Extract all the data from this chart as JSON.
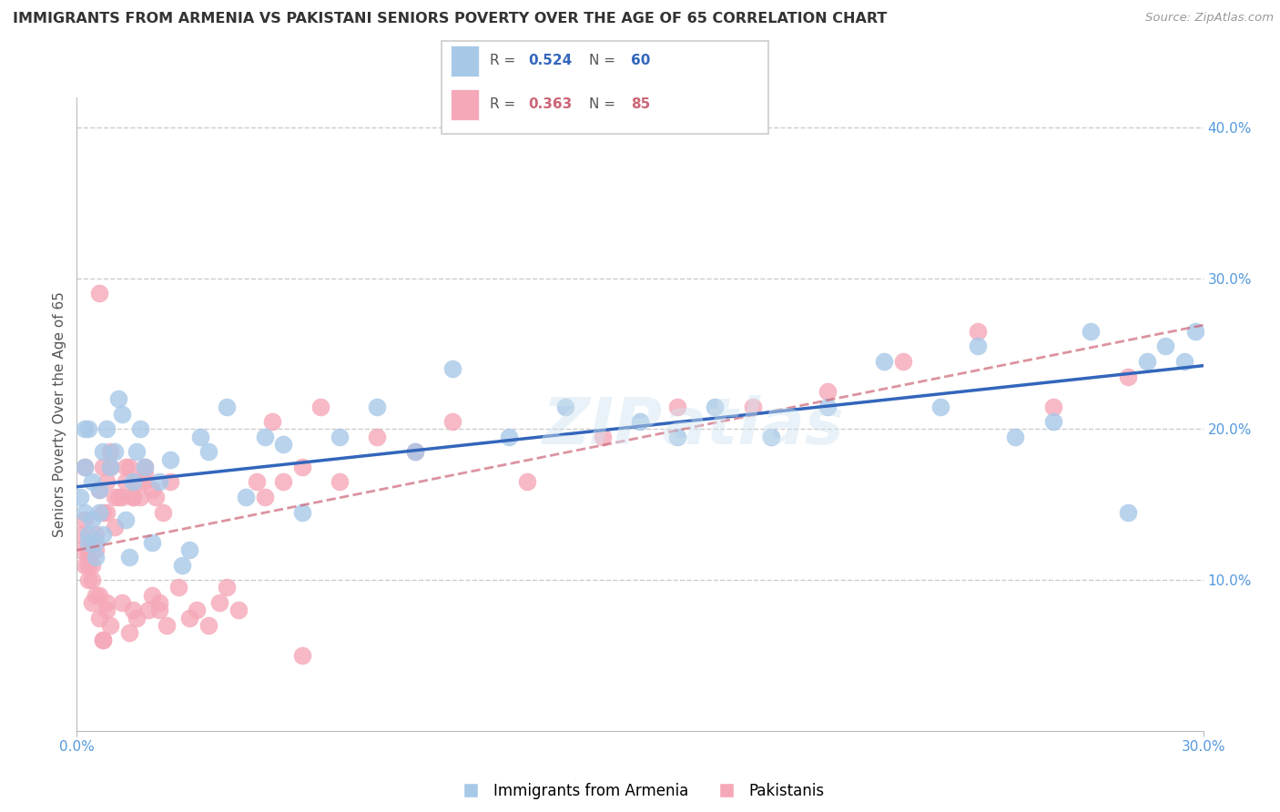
{
  "title": "IMMIGRANTS FROM ARMENIA VS PAKISTANI SENIORS POVERTY OVER THE AGE OF 65 CORRELATION CHART",
  "source": "Source: ZipAtlas.com",
  "ylabel": "Seniors Poverty Over the Age of 65",
  "xlim": [
    0.0,
    0.3
  ],
  "ylim": [
    0.0,
    0.42
  ],
  "xticks": [
    0.0,
    0.3
  ],
  "xtick_labels": [
    "0.0%",
    "30.0%"
  ],
  "yticks_right": [
    0.1,
    0.2,
    0.3,
    0.4
  ],
  "ytick_labels": [
    "10.0%",
    "20.0%",
    "30.0%",
    "40.0%"
  ],
  "series1_name": "Immigrants from Armenia",
  "series1_R": "0.524",
  "series1_N": "60",
  "series1_color": "#a8c8e8",
  "series1_line_color": "#3366bb",
  "series2_name": "Pakistanis",
  "series2_R": "0.363",
  "series2_N": "85",
  "series2_color": "#f5a8b8",
  "series2_line_color": "#cc6677",
  "background_color": "#ffffff",
  "grid_color": "#cccccc",
  "title_color": "#333333",
  "axis_label_color": "#555555",
  "tick_label_color": "#5599dd",
  "watermark": "ZIPatlas",
  "series1_x": [
    0.001,
    0.002,
    0.002,
    0.003,
    0.003,
    0.004,
    0.004,
    0.005,
    0.005,
    0.006,
    0.006,
    0.007,
    0.007,
    0.008,
    0.009,
    0.01,
    0.011,
    0.012,
    0.013,
    0.014,
    0.015,
    0.016,
    0.017,
    0.018,
    0.02,
    0.022,
    0.025,
    0.028,
    0.03,
    0.033,
    0.035,
    0.04,
    0.045,
    0.05,
    0.055,
    0.06,
    0.07,
    0.08,
    0.09,
    0.1,
    0.115,
    0.13,
    0.15,
    0.16,
    0.17,
    0.185,
    0.2,
    0.215,
    0.23,
    0.24,
    0.25,
    0.26,
    0.27,
    0.28,
    0.285,
    0.29,
    0.295,
    0.298,
    0.002,
    0.003
  ],
  "series1_y": [
    0.155,
    0.145,
    0.175,
    0.125,
    0.13,
    0.14,
    0.165,
    0.115,
    0.125,
    0.145,
    0.16,
    0.13,
    0.185,
    0.2,
    0.175,
    0.185,
    0.22,
    0.21,
    0.14,
    0.115,
    0.165,
    0.185,
    0.2,
    0.175,
    0.125,
    0.165,
    0.18,
    0.11,
    0.12,
    0.195,
    0.185,
    0.215,
    0.155,
    0.195,
    0.19,
    0.145,
    0.195,
    0.215,
    0.185,
    0.24,
    0.195,
    0.215,
    0.205,
    0.195,
    0.215,
    0.195,
    0.215,
    0.245,
    0.215,
    0.255,
    0.195,
    0.205,
    0.265,
    0.145,
    0.245,
    0.255,
    0.245,
    0.265,
    0.2,
    0.2
  ],
  "series2_x": [
    0.001,
    0.001,
    0.002,
    0.002,
    0.002,
    0.003,
    0.003,
    0.003,
    0.004,
    0.004,
    0.004,
    0.005,
    0.005,
    0.006,
    0.006,
    0.007,
    0.007,
    0.008,
    0.008,
    0.009,
    0.009,
    0.01,
    0.011,
    0.012,
    0.013,
    0.014,
    0.015,
    0.015,
    0.016,
    0.017,
    0.018,
    0.018,
    0.019,
    0.02,
    0.021,
    0.022,
    0.023,
    0.025,
    0.027,
    0.03,
    0.032,
    0.035,
    0.038,
    0.04,
    0.043,
    0.048,
    0.052,
    0.055,
    0.06,
    0.065,
    0.07,
    0.08,
    0.09,
    0.1,
    0.12,
    0.14,
    0.16,
    0.18,
    0.2,
    0.22,
    0.24,
    0.26,
    0.28,
    0.013,
    0.018,
    0.02,
    0.015,
    0.01,
    0.012,
    0.014,
    0.016,
    0.022,
    0.024,
    0.005,
    0.006,
    0.007,
    0.008,
    0.009,
    0.05,
    0.06,
    0.003,
    0.004,
    0.007,
    0.006,
    0.008
  ],
  "series2_y": [
    0.12,
    0.13,
    0.11,
    0.14,
    0.175,
    0.1,
    0.11,
    0.12,
    0.125,
    0.11,
    0.1,
    0.12,
    0.13,
    0.29,
    0.16,
    0.145,
    0.175,
    0.145,
    0.165,
    0.175,
    0.185,
    0.135,
    0.155,
    0.155,
    0.165,
    0.175,
    0.155,
    0.08,
    0.165,
    0.155,
    0.175,
    0.165,
    0.08,
    0.09,
    0.155,
    0.08,
    0.145,
    0.165,
    0.095,
    0.075,
    0.08,
    0.07,
    0.085,
    0.095,
    0.08,
    0.165,
    0.205,
    0.165,
    0.175,
    0.215,
    0.165,
    0.195,
    0.185,
    0.205,
    0.165,
    0.195,
    0.215,
    0.215,
    0.225,
    0.245,
    0.265,
    0.215,
    0.235,
    0.175,
    0.17,
    0.16,
    0.155,
    0.155,
    0.085,
    0.065,
    0.075,
    0.085,
    0.07,
    0.09,
    0.09,
    0.06,
    0.08,
    0.07,
    0.155,
    0.05,
    0.115,
    0.085,
    0.06,
    0.075,
    0.085
  ]
}
